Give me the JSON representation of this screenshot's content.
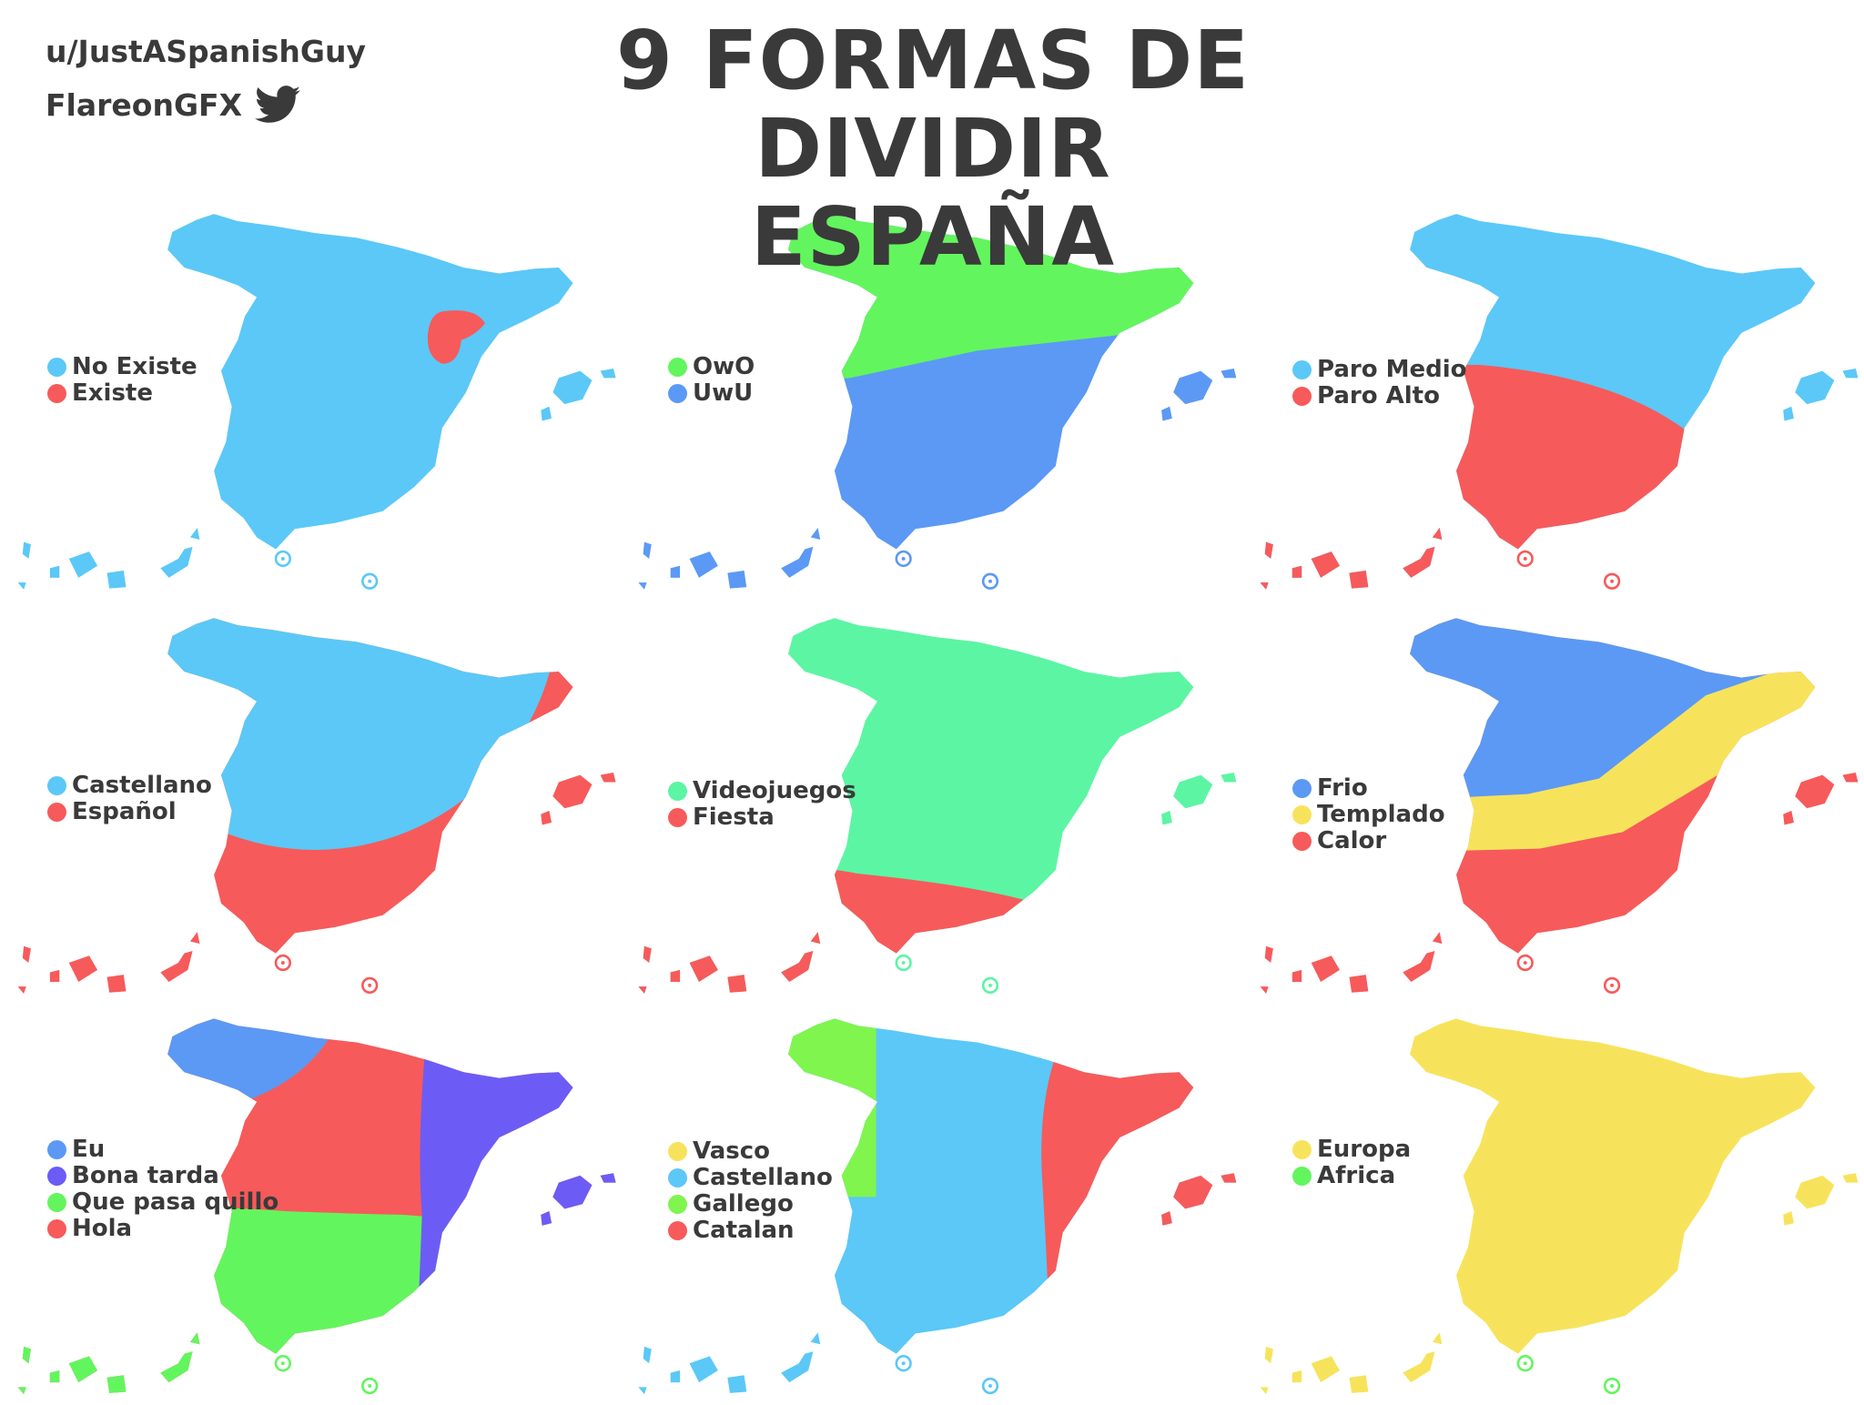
{
  "credits": {
    "reddit": "u/JustASpanishGuy",
    "twitter": "FlareonGFX",
    "twitter_icon": "twitter-bird-icon"
  },
  "title": {
    "line1": "9 FORMAS DE DIVIDIR",
    "line2": "ESPAÑA"
  },
  "colors": {
    "light_blue": "#5bc8f7",
    "blue": "#5b99f5",
    "red": "#f75a5a",
    "green": "#63f55e",
    "mint": "#5cf5a4",
    "yellow": "#f7e35b",
    "purple": "#6c5cf5",
    "lime": "#7ff54e",
    "text": "#3a3a3a"
  },
  "maps": [
    {
      "legend": [
        {
          "label": "No Existe",
          "color": "#5bc8f7"
        },
        {
          "label": "Existe",
          "color": "#f75a5a"
        }
      ]
    },
    {
      "legend": [
        {
          "label": "OwO",
          "color": "#63f55e"
        },
        {
          "label": "UwU",
          "color": "#5b99f5"
        }
      ]
    },
    {
      "legend": [
        {
          "label": "Paro Medio",
          "color": "#5bc8f7"
        },
        {
          "label": "Paro Alto",
          "color": "#f75a5a"
        }
      ]
    },
    {
      "legend": [
        {
          "label": "Castellano",
          "color": "#5bc8f7"
        },
        {
          "label": "Español",
          "color": "#f75a5a"
        }
      ]
    },
    {
      "legend": [
        {
          "label": "Videojuegos",
          "color": "#5cf5a4"
        },
        {
          "label": "Fiesta",
          "color": "#f75a5a"
        }
      ]
    },
    {
      "legend": [
        {
          "label": "Frio",
          "color": "#5b99f5"
        },
        {
          "label": "Templado",
          "color": "#f7e35b"
        },
        {
          "label": "Calor",
          "color": "#f75a5a"
        }
      ]
    },
    {
      "legend": [
        {
          "label": "Eu",
          "color": "#5b99f5"
        },
        {
          "label": "Bona tarda",
          "color": "#6c5cf5"
        },
        {
          "label": "Que pasa quillo",
          "color": "#63f55e"
        },
        {
          "label": "Hola",
          "color": "#f75a5a"
        }
      ]
    },
    {
      "legend": [
        {
          "label": "Vasco",
          "color": "#f7e35b"
        },
        {
          "label": "Castellano",
          "color": "#5bc8f7"
        },
        {
          "label": "Gallego",
          "color": "#7ff54e"
        },
        {
          "label": "Catalan",
          "color": "#f75a5a"
        }
      ]
    },
    {
      "legend": [
        {
          "label": "Europa",
          "color": "#f7e35b"
        },
        {
          "label": "Africa",
          "color": "#63f55e"
        }
      ]
    }
  ]
}
